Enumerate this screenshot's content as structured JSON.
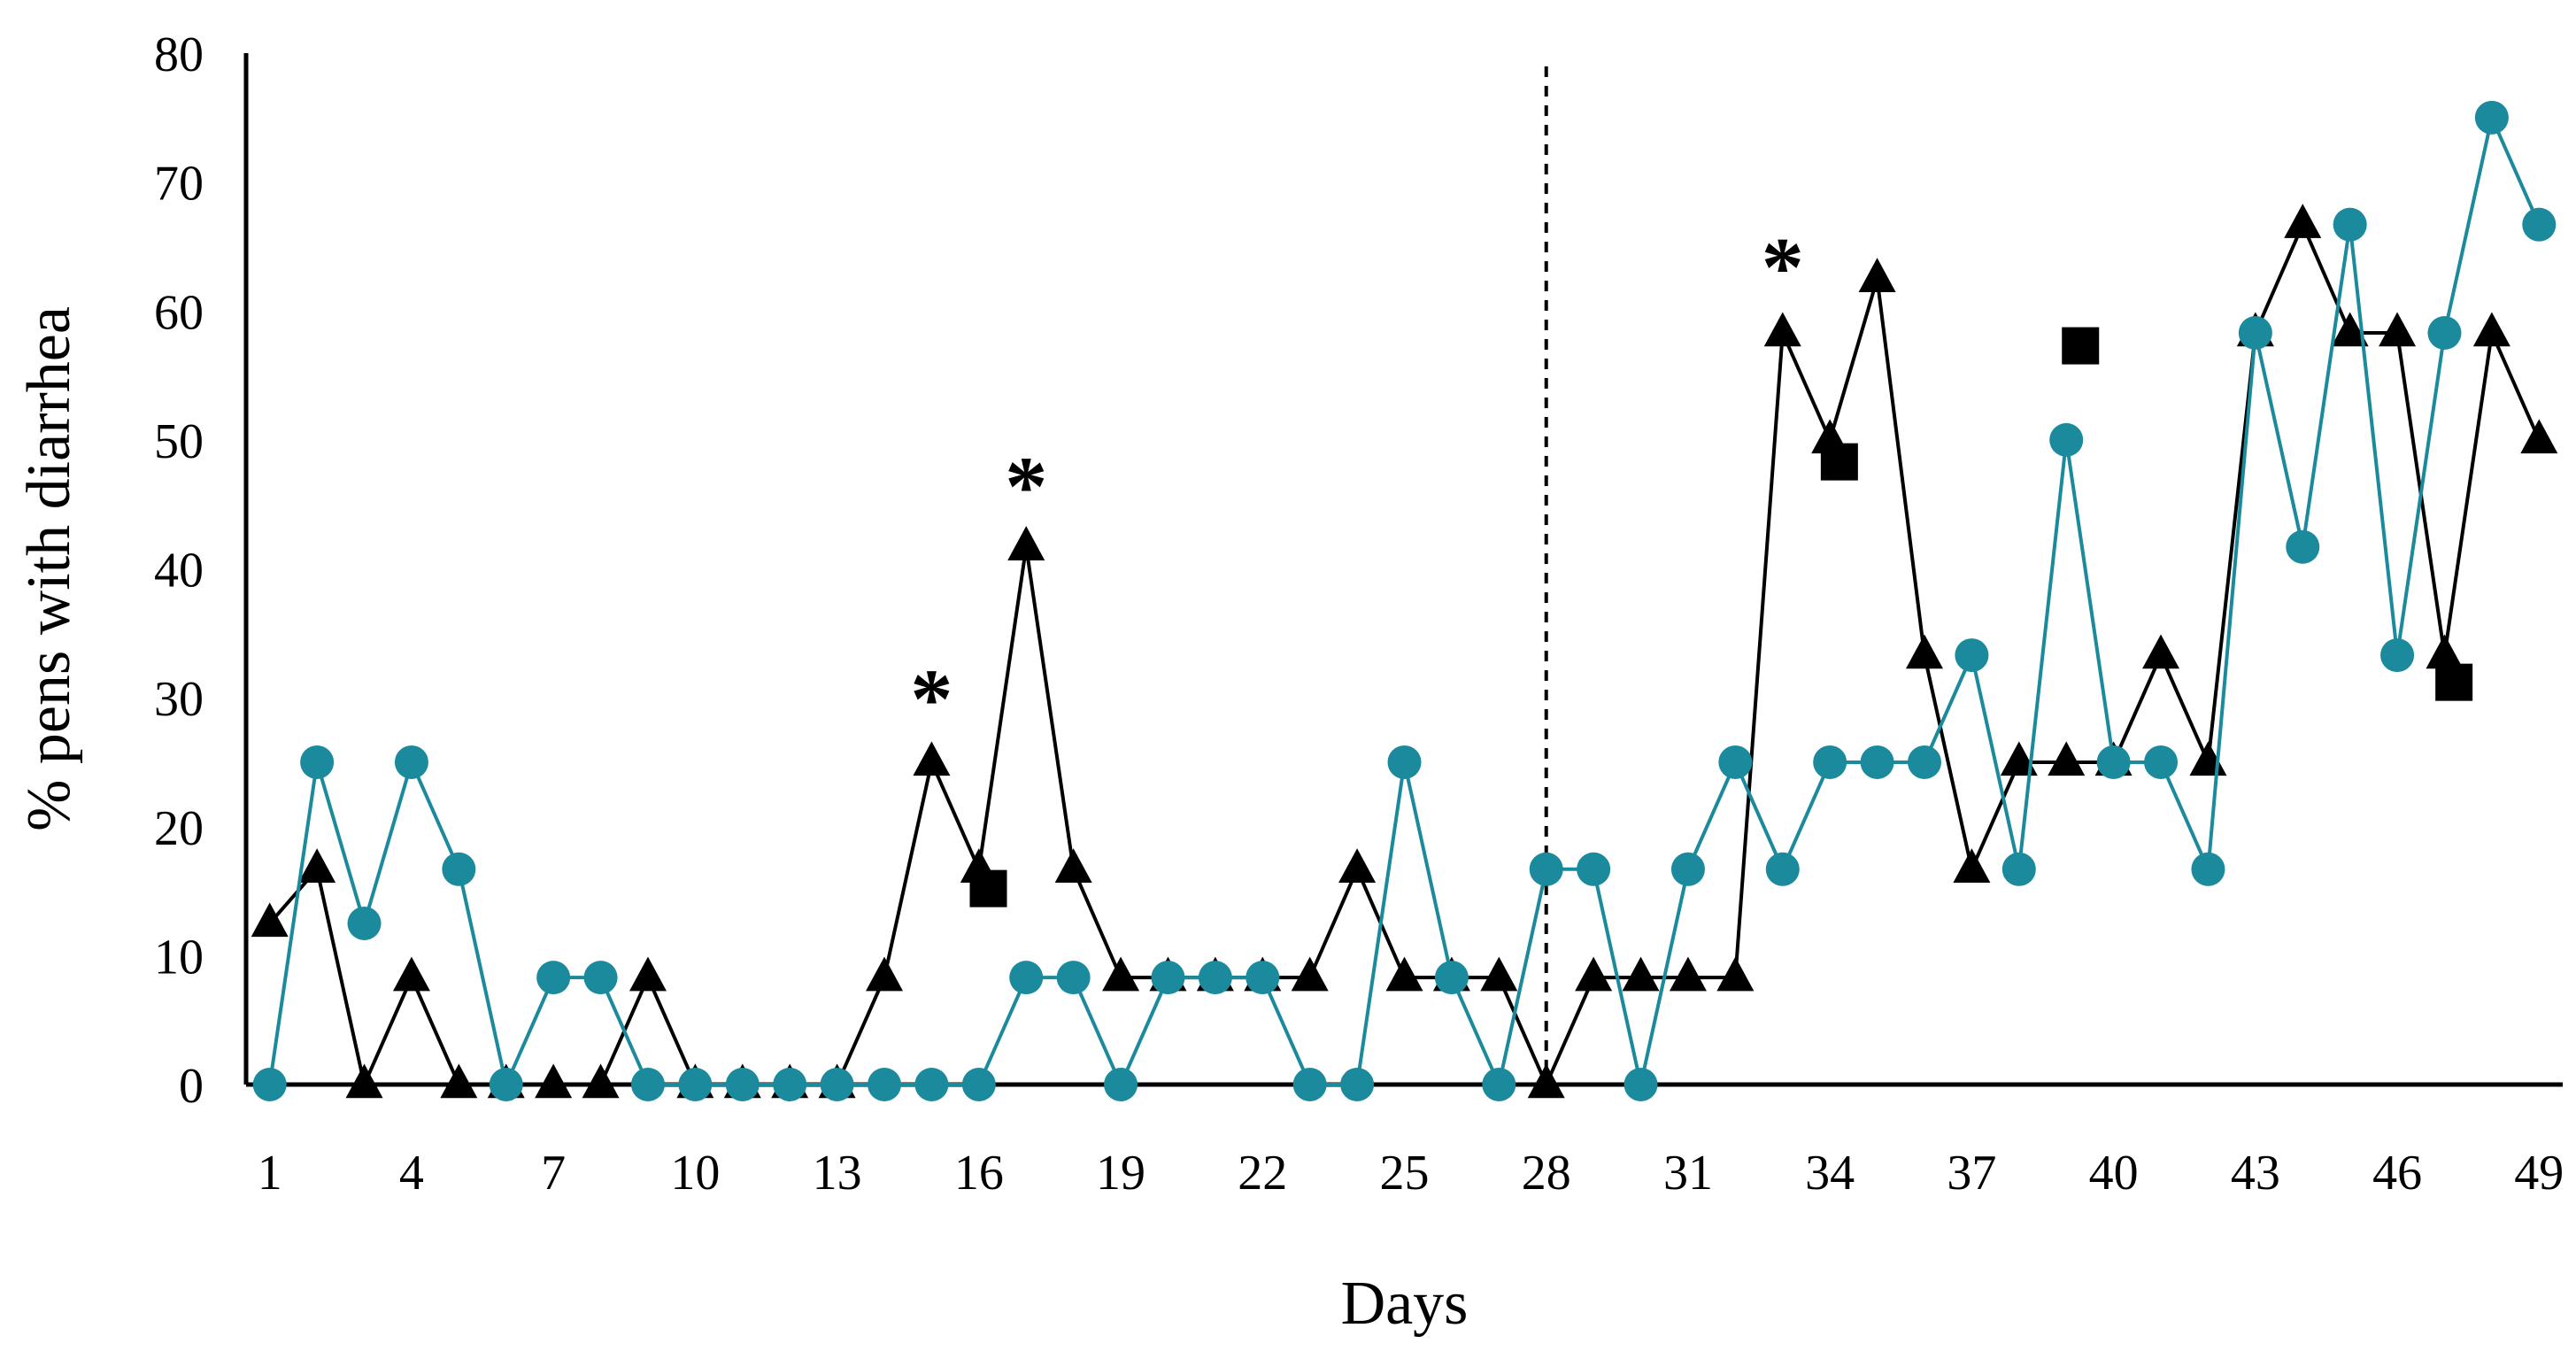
{
  "chart_data": {
    "type": "line",
    "title": "",
    "xlabel": "Days",
    "ylabel": "% pens with diarrhea",
    "xlim": [
      0.5,
      49.5
    ],
    "ylim": [
      0,
      80
    ],
    "x_ticks": [
      "1",
      "4",
      "7",
      "10",
      "13",
      "16",
      "19",
      "22",
      "25",
      "28",
      "31",
      "34",
      "37",
      "40",
      "43",
      "46",
      "49"
    ],
    "y_ticks": [
      "0",
      "10",
      "20",
      "30",
      "40",
      "50",
      "60",
      "70",
      "80"
    ],
    "reference_line": {
      "x": 28,
      "style": "dashed"
    },
    "series": [
      {
        "name": "triangle-series",
        "marker": "triangle",
        "color": "#000000",
        "x": [
          1,
          2,
          3,
          4,
          5,
          6,
          7,
          8,
          9,
          10,
          11,
          12,
          13,
          14,
          15,
          16,
          17,
          18,
          19,
          20,
          21,
          22,
          23,
          24,
          25,
          26,
          27,
          28,
          29,
          30,
          31,
          32,
          33,
          34,
          35,
          36,
          37,
          38,
          39,
          40,
          41,
          42,
          43,
          44,
          45,
          46,
          47,
          48,
          49
        ],
        "values": [
          12.5,
          16.7,
          0,
          8.3,
          0,
          0,
          0,
          0,
          8.3,
          0,
          0,
          0,
          0,
          8.3,
          25,
          16.7,
          41.7,
          16.7,
          8.3,
          8.3,
          8.3,
          8.3,
          8.3,
          16.7,
          8.3,
          8.3,
          8.3,
          0,
          8.3,
          8.3,
          8.3,
          8.3,
          58.3,
          50,
          62.5,
          33.3,
          16.7,
          25,
          25,
          25,
          33.3,
          25,
          58.3,
          66.7,
          58.3,
          58.3,
          33.3,
          58.3,
          50
        ]
      },
      {
        "name": "circle-series",
        "marker": "circle",
        "color": "#1a8a9c",
        "x": [
          1,
          2,
          3,
          4,
          5,
          6,
          7,
          8,
          9,
          10,
          11,
          12,
          13,
          14,
          15,
          16,
          17,
          18,
          19,
          20,
          21,
          22,
          23,
          24,
          25,
          26,
          27,
          28,
          29,
          30,
          31,
          32,
          33,
          34,
          35,
          36,
          37,
          38,
          39,
          40,
          41,
          42,
          43,
          44,
          45,
          46,
          47,
          48,
          49
        ],
        "values": [
          0,
          25,
          12.5,
          25,
          16.7,
          0,
          8.3,
          8.3,
          0,
          0,
          0,
          0,
          0,
          0,
          0,
          0,
          8.3,
          8.3,
          0,
          8.3,
          8.3,
          8.3,
          0,
          0,
          25,
          8.3,
          0,
          16.7,
          16.7,
          0,
          16.7,
          25,
          16.7,
          25,
          25,
          25,
          33.3,
          16.7,
          50,
          25,
          25,
          16.7,
          58.3,
          41.7,
          66.7,
          33.3,
          58.3,
          75,
          66.7
        ]
      },
      {
        "name": "square-markers",
        "marker": "square",
        "color": "#000000",
        "x": [
          16.2,
          34.2,
          39.3,
          47.2
        ],
        "values": [
          15.2,
          48.3,
          57.3,
          31.2
        ]
      }
    ],
    "annotations": [
      {
        "text": "*",
        "x": 15,
        "y": 30
      },
      {
        "text": "*",
        "x": 17,
        "y": 46.5
      },
      {
        "text": "*",
        "x": 33,
        "y": 63.5
      }
    ]
  }
}
